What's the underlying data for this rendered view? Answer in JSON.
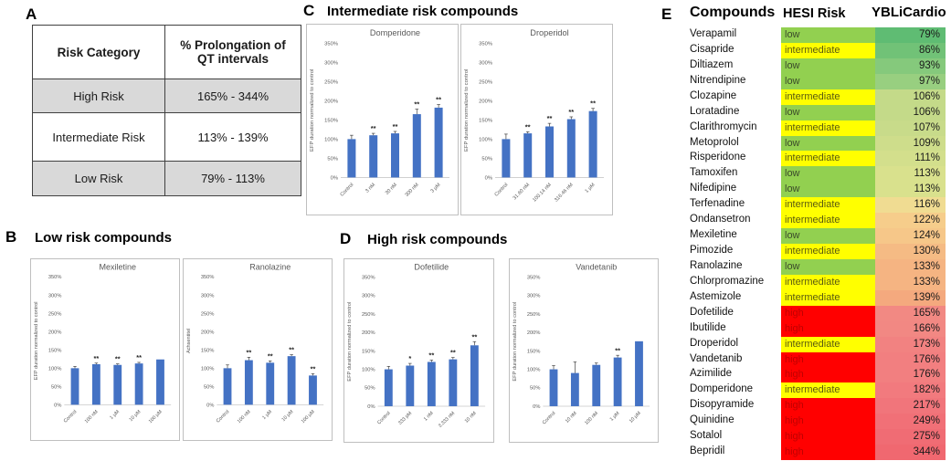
{
  "bar_color": "#4472C4",
  "panels": {
    "a": {
      "label": "A",
      "table": {
        "headers": [
          "Risk Category",
          "% Prolongation of QT intervals"
        ],
        "rows": [
          {
            "category": "High Risk",
            "range": "165% - 344%",
            "shaded": true
          },
          {
            "category": "Intermediate Risk",
            "range": "113% - 139%",
            "shaded": false
          },
          {
            "category": "Low Risk",
            "range": "79% - 113%",
            "shaded": true
          }
        ]
      }
    },
    "b": {
      "label": "B",
      "title": "Low risk compounds"
    },
    "c": {
      "label": "C",
      "title": "Intermediate risk compounds"
    },
    "d": {
      "label": "D",
      "title": "High risk compounds"
    },
    "e": {
      "label": "E",
      "columns": [
        "Compounds",
        "HESI Risk",
        "YBLiCardio"
      ],
      "risk_colors": {
        "low": "#92D050",
        "intermediate": "#FFFF00",
        "high": "#FF0000"
      },
      "risk_text_colors": {
        "low": "#3a4a2a",
        "intermediate": "#5a5a10",
        "high": "#C00000"
      },
      "rows": [
        {
          "compound": "Verapamil",
          "hesi": "low",
          "value": "79%",
          "value_color": "#5FBC73"
        },
        {
          "compound": "Cisapride",
          "hesi": "intermediate",
          "value": "86%",
          "value_color": "#71C277"
        },
        {
          "compound": "Diltiazem",
          "hesi": "low",
          "value": "93%",
          "value_color": "#85C97C"
        },
        {
          "compound": "Nitrendipine",
          "hesi": "low",
          "value": "97%",
          "value_color": "#98CF80"
        },
        {
          "compound": "Clozapine",
          "hesi": "intermediate",
          "value": "106%",
          "value_color": "#C4DA89"
        },
        {
          "compound": "Loratadine",
          "hesi": "low",
          "value": "106%",
          "value_color": "#C4DA89"
        },
        {
          "compound": "Clarithromycin",
          "hesi": "intermediate",
          "value": "107%",
          "value_color": "#C8DB8A"
        },
        {
          "compound": "Metoprolol",
          "hesi": "low",
          "value": "109%",
          "value_color": "#CEDD8B"
        },
        {
          "compound": "Risperidone",
          "hesi": "intermediate",
          "value": "111%",
          "value_color": "#D3DF8C"
        },
        {
          "compound": "Tamoxifen",
          "hesi": "low",
          "value": "113%",
          "value_color": "#D9E18D"
        },
        {
          "compound": "Nifedipine",
          "hesi": "low",
          "value": "113%",
          "value_color": "#D9E18D"
        },
        {
          "compound": "Terfenadine",
          "hesi": "intermediate",
          "value": "116%",
          "value_color": "#F0DC92"
        },
        {
          "compound": "Ondansetron",
          "hesi": "intermediate",
          "value": "122%",
          "value_color": "#F6CD8B"
        },
        {
          "compound": "Mexiletine",
          "hesi": "low",
          "value": "124%",
          "value_color": "#F6C789"
        },
        {
          "compound": "Pimozide",
          "hesi": "intermediate",
          "value": "130%",
          "value_color": "#F5BB84"
        },
        {
          "compound": "Ranolazine",
          "hesi": "low",
          "value": "133%",
          "value_color": "#F5B482"
        },
        {
          "compound": "Chlorpromazine",
          "hesi": "intermediate",
          "value": "133%",
          "value_color": "#F5B482"
        },
        {
          "compound": "Astemizole",
          "hesi": "intermediate",
          "value": "139%",
          "value_color": "#F4A97E"
        },
        {
          "compound": "Dofetilide",
          "hesi": "high",
          "value": "165%",
          "value_color": "#F28983"
        },
        {
          "compound": "Ibutilide",
          "hesi": "high",
          "value": "166%",
          "value_color": "#F28883"
        },
        {
          "compound": "Droperidol",
          "hesi": "intermediate",
          "value": "173%",
          "value_color": "#F28281"
        },
        {
          "compound": "Vandetanib",
          "hesi": "high",
          "value": "176%",
          "value_color": "#F27F80"
        },
        {
          "compound": "Azimilide",
          "hesi": "high",
          "value": "176%",
          "value_color": "#F27F80"
        },
        {
          "compound": "Domperidone",
          "hesi": "intermediate",
          "value": "182%",
          "value_color": "#F27A7E"
        },
        {
          "compound": "Disopyramide",
          "hesi": "high",
          "value": "217%",
          "value_color": "#F1757B"
        },
        {
          "compound": "Quinidine",
          "hesi": "high",
          "value": "249%",
          "value_color": "#F17077"
        },
        {
          "compound": "Sotalol",
          "hesi": "high",
          "value": "275%",
          "value_color": "#F06C74"
        },
        {
          "compound": "Bepridil",
          "hesi": "high",
          "value": "344%",
          "value_color": "#F06870"
        }
      ]
    }
  },
  "chart_data": [
    {
      "type": "bar",
      "panel": "C",
      "title": "Domperidone",
      "ylabel": "EFP duration normalized to control",
      "categories": [
        "Control",
        "3 nM",
        "30 nM",
        "300 nM",
        "3 µM"
      ],
      "values": [
        100,
        110,
        115,
        165,
        182
      ],
      "errors": [
        10,
        5,
        5,
        13,
        8
      ],
      "sig": [
        "",
        "**",
        "**",
        "**",
        "**"
      ],
      "ylim": [
        0,
        350
      ],
      "ytick_step": 50,
      "tick_format": "percent",
      "grid": false,
      "legend": "none"
    },
    {
      "type": "bar",
      "panel": "C",
      "title": "Droperidol",
      "ylabel": "EFP duration normalized to control",
      "categories": [
        "Control",
        "31.60 nM",
        "100.14 nM",
        "316.46 nM",
        "1 µM"
      ],
      "values": [
        100,
        115,
        133,
        152,
        173
      ],
      "errors": [
        13,
        4,
        8,
        6,
        7
      ],
      "sig": [
        "",
        "**",
        "**",
        "**",
        "**"
      ],
      "ylim": [
        0,
        350
      ],
      "ytick_step": 50,
      "tick_format": "percent",
      "grid": false,
      "legend": "none"
    },
    {
      "type": "bar",
      "panel": "B",
      "title": "Mexiletine",
      "ylabel": "EFP duration normalized to control",
      "categories": [
        "Control",
        "100 nM",
        "1 µM",
        "10 µM",
        "100 µM"
      ],
      "values": [
        100,
        111,
        109,
        113,
        124
      ],
      "errors": [
        5,
        3,
        3,
        3,
        0
      ],
      "sig": [
        "",
        "**",
        "**",
        "**",
        ""
      ],
      "ylim": [
        0,
        350
      ],
      "ytick_step": 50,
      "tick_format": "percent",
      "grid": false,
      "legend": "none"
    },
    {
      "type": "bar",
      "panel": "B",
      "title": "Ranolazine",
      "ylabel": "Achsentitel",
      "categories": [
        "Control",
        "100 nM",
        "1 µM",
        "10 µM",
        "100 µM"
      ],
      "values": [
        100,
        122,
        115,
        133,
        80
      ],
      "errors": [
        9,
        8,
        5,
        4,
        5
      ],
      "sig": [
        "",
        "**",
        "**",
        "**",
        "**"
      ],
      "ylim": [
        0,
        350
      ],
      "ytick_step": 50,
      "tick_format": "percent",
      "grid": false,
      "legend": "none"
    },
    {
      "type": "bar",
      "panel": "D",
      "title": "Dofetilide",
      "ylabel": "EFP duration normalized to control",
      "categories": [
        "Control",
        "333 pM",
        "1 nM",
        "3.333 nM",
        "10 nM"
      ],
      "values": [
        100,
        110,
        120,
        127,
        165
      ],
      "errors": [
        8,
        6,
        5,
        5,
        10
      ],
      "sig": [
        "",
        "*",
        "**",
        "**",
        "**"
      ],
      "ylim": [
        0,
        350
      ],
      "ytick_step": 50,
      "tick_format": "percent",
      "grid": false,
      "legend": "none"
    },
    {
      "type": "bar",
      "panel": "D",
      "title": "Vandetanib",
      "ylabel": "EFP duration normalized to control",
      "categories": [
        "Control",
        "10 nM",
        "100 nM",
        "1 µM",
        "10 µM"
      ],
      "values": [
        100,
        90,
        112,
        132,
        176
      ],
      "errors": [
        10,
        30,
        5,
        6,
        0
      ],
      "sig": [
        "",
        "",
        "",
        "**",
        ""
      ],
      "ylim": [
        0,
        350
      ],
      "ytick_step": 50,
      "tick_format": "percent",
      "grid": false,
      "legend": "none"
    }
  ]
}
